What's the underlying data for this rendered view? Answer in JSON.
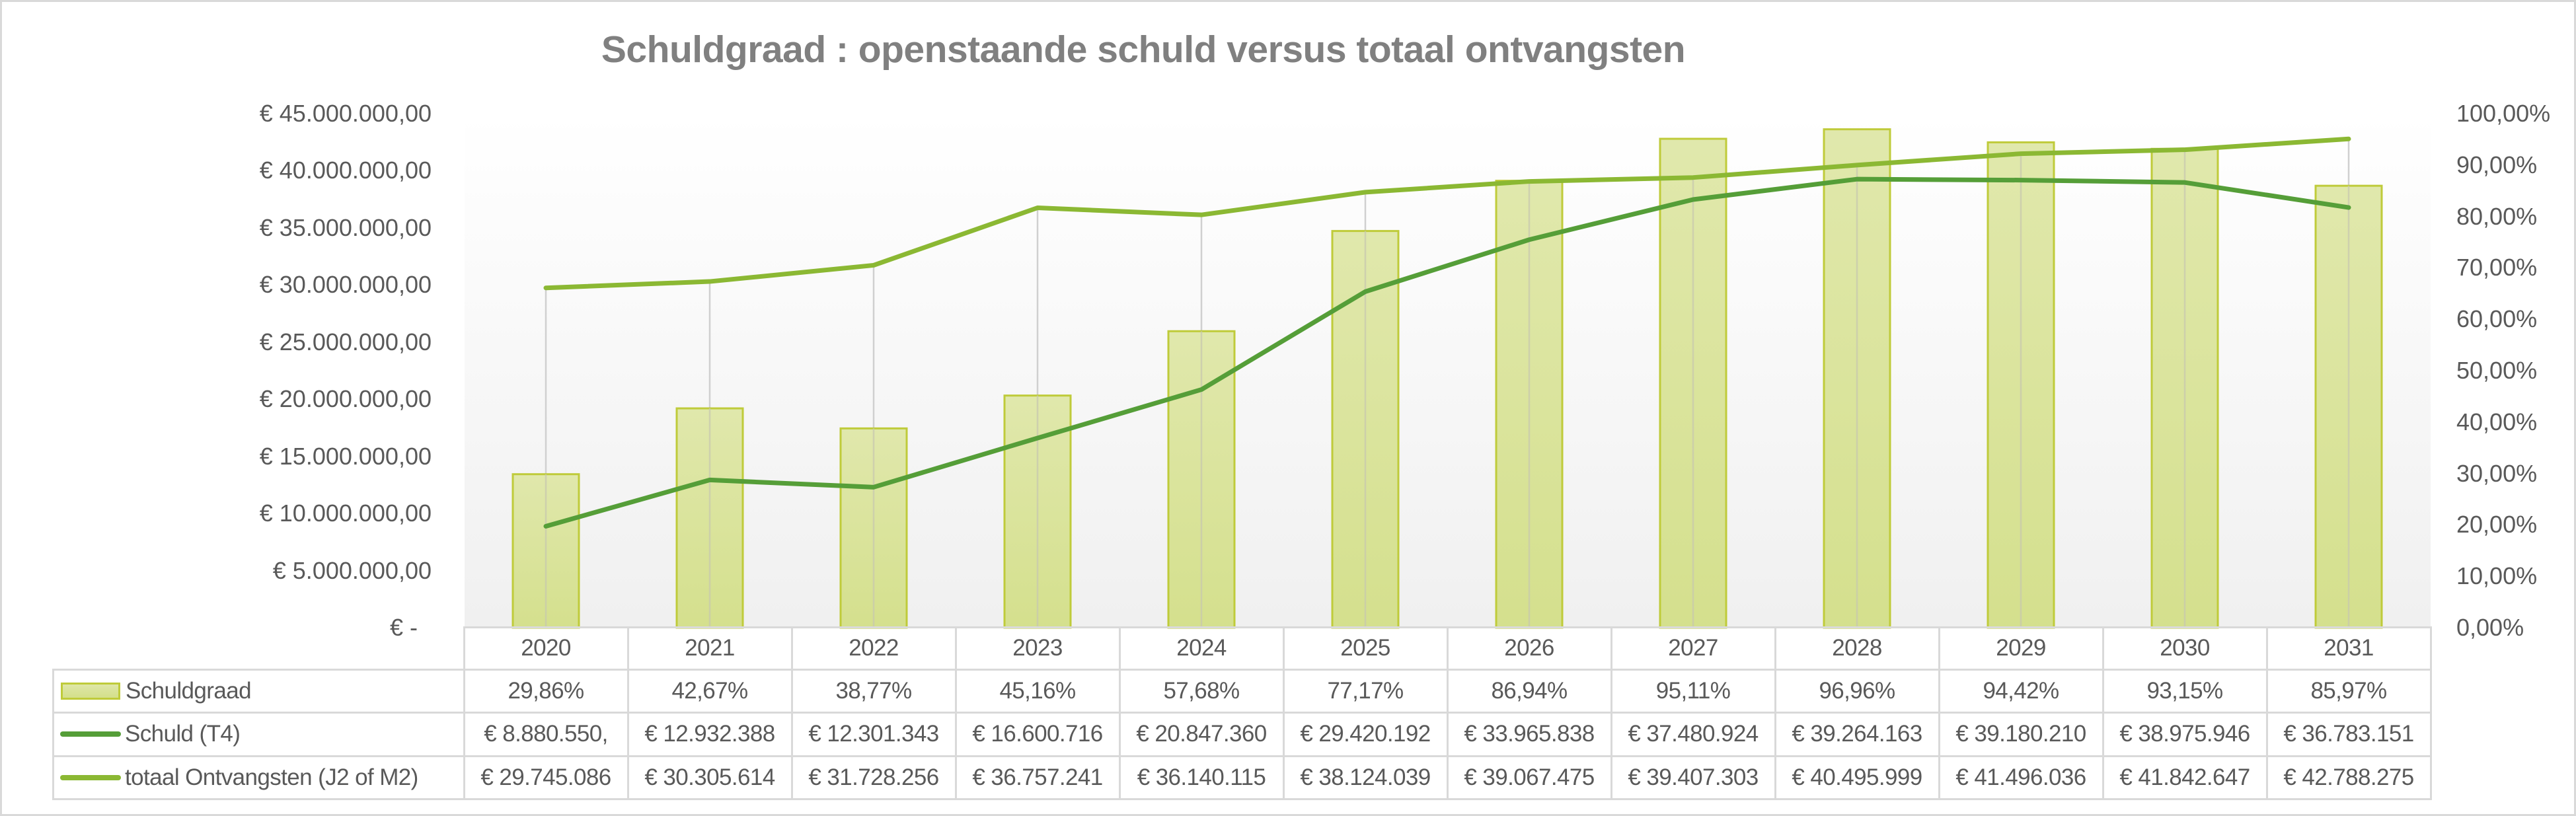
{
  "chart_data": {
    "type": "bar+line",
    "title": "Schuldgraad : openstaande schuld versus totaal ontvangsten",
    "categories": [
      "2020",
      "2021",
      "2022",
      "2023",
      "2024",
      "2025",
      "2026",
      "2027",
      "2028",
      "2029",
      "2030",
      "2031"
    ],
    "y_left": {
      "range": [
        0,
        45000000
      ],
      "ticks": [
        0,
        5000000,
        10000000,
        15000000,
        20000000,
        25000000,
        30000000,
        35000000,
        40000000,
        45000000
      ],
      "tick_labels": [
        "€ -",
        "€ 5.000.000,00",
        "€ 10.000.000,00",
        "€ 15.000.000,00",
        "€ 20.000.000,00",
        "€ 25.000.000,00",
        "€ 30.000.000,00",
        "€ 35.000.000,00",
        "€ 40.000.000,00",
        "€ 45.000.000,00"
      ]
    },
    "y_right": {
      "range": [
        0,
        100
      ],
      "ticks": [
        0,
        10,
        20,
        30,
        40,
        50,
        60,
        70,
        80,
        90,
        100
      ],
      "tick_labels": [
        "0,00%",
        "10,00%",
        "20,00%",
        "30,00%",
        "40,00%",
        "50,00%",
        "60,00%",
        "70,00%",
        "80,00%",
        "90,00%",
        "100,00%"
      ]
    },
    "series": [
      {
        "name": "Schuldgraad",
        "type": "bar",
        "axis": "right",
        "color": "#d9e39b",
        "border_color": "#bfcb3a",
        "values": [
          29.86,
          42.67,
          38.77,
          45.16,
          57.68,
          77.17,
          86.94,
          95.11,
          96.96,
          94.42,
          93.15,
          85.97
        ],
        "labels": [
          "29,86%",
          "42,67%",
          "38,77%",
          "45,16%",
          "57,68%",
          "77,17%",
          "86,94%",
          "95,11%",
          "96,96%",
          "94,42%",
          "93,15%",
          "85,97%"
        ]
      },
      {
        "name": "Schuld (T4)",
        "type": "line",
        "axis": "left",
        "color": "#559e38",
        "values": [
          8880550,
          12932388,
          12301343,
          16600716,
          20847360,
          29420192,
          33965838,
          37480924,
          39264163,
          39180210,
          38975946,
          36783151
        ],
        "labels": [
          "€ 8.880.550,",
          "€ 12.932.388",
          "€ 12.301.343",
          "€ 16.600.716",
          "€ 20.847.360",
          "€ 29.420.192",
          "€ 33.965.838",
          "€ 37.480.924",
          "€ 39.264.163",
          "€ 39.180.210",
          "€ 38.975.946",
          "€ 36.783.151"
        ]
      },
      {
        "name": "totaal Ontvangsten (J2 of M2)",
        "type": "line",
        "axis": "left",
        "color": "#8bb833",
        "drop_lines": true,
        "values": [
          29745086,
          30305614,
          31728256,
          36757241,
          36140115,
          38124039,
          39067475,
          39407303,
          40495999,
          41496036,
          41842647,
          42788275
        ],
        "labels": [
          "€ 29.745.086",
          "€ 30.305.614",
          "€ 31.728.256",
          "€ 36.757.241",
          "€ 36.140.115",
          "€ 38.124.039",
          "€ 39.067.475",
          "€ 39.407.303",
          "€ 40.495.999",
          "€ 41.496.036",
          "€ 41.842.647",
          "€ 42.788.275"
        ]
      }
    ],
    "data_table": true,
    "legend": "in-data-table",
    "grid": false
  }
}
